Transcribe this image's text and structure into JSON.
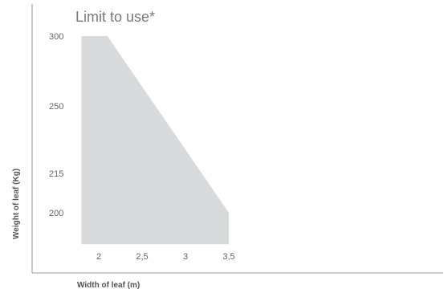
{
  "chart_data": {
    "type": "area",
    "title": "Limit to use*",
    "xlabel": "Width of leaf (m)",
    "ylabel": "Weight of leaf (Kg)",
    "x_ticks": [
      "2",
      "2,5",
      "3",
      "3,5"
    ],
    "x_tick_values": [
      2,
      2.5,
      3,
      3.5
    ],
    "y_ticks": [
      "300",
      "250",
      "215",
      "200"
    ],
    "y_tick_values": [
      300,
      250,
      215,
      200
    ],
    "series": [
      {
        "x": [
          1.8,
          1.8,
          2.1,
          3.5,
          3.5
        ],
        "y": [
          188,
          300,
          300,
          200,
          188
        ]
      }
    ],
    "fill_color": "#d8dadc",
    "axis_color": "#999999",
    "grid": false
  }
}
